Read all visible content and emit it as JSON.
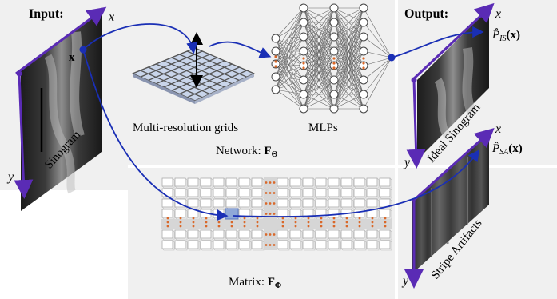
{
  "input_label": "Input:",
  "output_label": "Output:",
  "axis_x": "x",
  "axis_y": "y",
  "point_label": "x",
  "sinogram_label": "Sinogram",
  "grids_label": "Multi-resolution grids",
  "mlps_label": "MLPs",
  "network_label": "Network: ",
  "network_symbol": "F",
  "network_sub": "Θ",
  "matrix_label": "Matrix: ",
  "matrix_symbol": "F",
  "matrix_sub": "Φ",
  "ideal_label": "Ideal Sinogram",
  "stripe_label": "Stripe Artifacts",
  "p_is_symbol": "P̂",
  "p_is_sub": "IS",
  "p_is_arg": "(x)",
  "p_sa_symbol": "P̂",
  "p_sa_sub": "SA",
  "p_sa_arg": "(x)",
  "colors": {
    "arrow_blue": "#1a2fb5",
    "axis_purple": "#5a2bb5",
    "dot_orange": "#d9682a",
    "panel_gray": "#f0f0f0"
  }
}
